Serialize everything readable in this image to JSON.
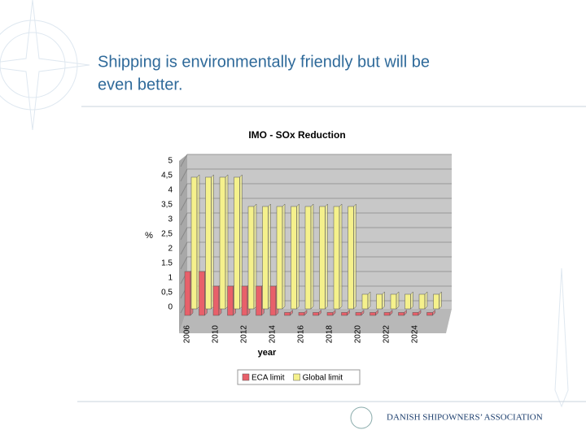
{
  "slide_title": "Shipping is environmentally friendly but will be even better.",
  "footer": "DANISH SHIPOWNERS’ ASSOCIATION",
  "chart_data": {
    "type": "bar",
    "title": "IMO  - SOx Reduction",
    "x_label": "year",
    "y_label": "%",
    "categories": [
      "2006",
      null,
      "2010",
      null,
      "2012",
      null,
      "2014",
      null,
      "2016",
      null,
      "2018",
      null,
      "2020",
      null,
      "2022",
      null,
      "2024",
      null
    ],
    "series": [
      {
        "name": "ECA limit",
        "color": "#e8606a",
        "values": [
          1.5,
          1.5,
          1,
          1,
          1,
          1,
          1,
          0.1,
          0.1,
          0.1,
          0.1,
          0.1,
          0.1,
          0.1,
          0.1,
          0.1,
          0.1,
          0.1
        ]
      },
      {
        "name": "Global limit",
        "color": "#f5f18c",
        "values": [
          4.5,
          4.5,
          4.5,
          4.5,
          3.5,
          3.5,
          3.5,
          3.5,
          3.5,
          3.5,
          3.5,
          3.5,
          0.5,
          0.5,
          0.5,
          0.5,
          0.5,
          0.5
        ]
      }
    ],
    "ylim": [
      0,
      5
    ],
    "yticks": [
      0,
      {
        "value": 0.5,
        "label": "0,5"
      },
      1,
      1.5,
      2,
      {
        "value": 2.5,
        "label": "2,5"
      },
      3,
      {
        "value": 3.5,
        "label": "3,5"
      },
      4,
      {
        "value": 4.5,
        "label": "4,5"
      },
      5
    ],
    "grid": true,
    "legend": "bottom"
  }
}
